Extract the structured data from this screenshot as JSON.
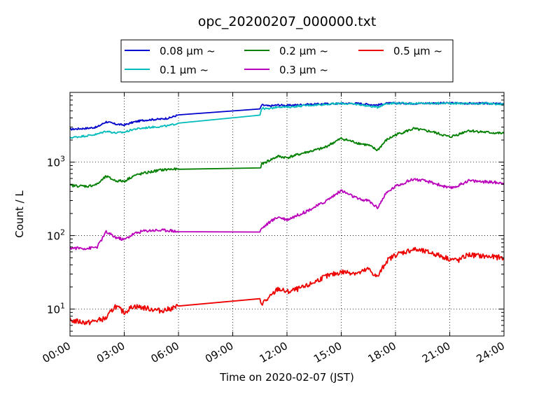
{
  "chart_data": {
    "type": "line",
    "title": "opc_20200207_000000.txt",
    "xlabel": "Time on 2020-02-07 (JST)",
    "ylabel": "Count / L",
    "yscale": "log",
    "grid": true,
    "legend_placement": "top-center",
    "xlim": [
      "00:00",
      "24:00"
    ],
    "ylim": [
      4.3,
      8900
    ],
    "x_ticks": [
      "00:00",
      "03:00",
      "06:00",
      "09:00",
      "12:00",
      "15:00",
      "18:00",
      "21:00",
      "24:00"
    ],
    "y_ticks": [
      {
        "value": 10,
        "base": "10",
        "exp": "1"
      },
      {
        "value": 100,
        "base": "10",
        "exp": "2"
      },
      {
        "value": 1000,
        "base": "10",
        "exp": "3"
      }
    ],
    "x_hours": [
      0,
      1,
      1.5,
      2,
      2.5,
      3,
      3.5,
      4,
      4.5,
      5,
      5.5,
      6,
      10.5,
      10.6,
      11,
      11.5,
      12,
      13,
      14,
      15,
      16,
      16.5,
      17,
      17.5,
      18,
      19,
      20,
      21,
      21.5,
      22,
      23,
      24
    ],
    "series": [
      {
        "name": "0.08 μm ~",
        "color": "#0000cc",
        "noise": 0.025,
        "values": [
          2800,
          2900,
          3000,
          3550,
          3300,
          3200,
          3500,
          3700,
          3800,
          3850,
          4000,
          4400,
          5200,
          6000,
          5800,
          6000,
          5900,
          6100,
          6200,
          6300,
          6300,
          6100,
          6000,
          6300,
          6350,
          6300,
          6350,
          6350,
          6350,
          6300,
          6300,
          6200
        ]
      },
      {
        "name": "0.1 μm ~",
        "color": "#00bbbb",
        "noise": 0.025,
        "values": [
          2150,
          2300,
          2400,
          2650,
          2500,
          2550,
          2800,
          2900,
          3000,
          3050,
          3150,
          3400,
          4400,
          5400,
          5300,
          5700,
          5600,
          5900,
          6100,
          6300,
          6100,
          5800,
          5600,
          6300,
          6350,
          6300,
          6300,
          6350,
          6300,
          6300,
          6300,
          6100
        ]
      },
      {
        "name": "0.2 μm ~",
        "color": "#007f00",
        "noise": 0.035,
        "values": [
          480,
          470,
          500,
          640,
          560,
          550,
          650,
          700,
          740,
          780,
          800,
          800,
          810,
          940,
          1050,
          1200,
          1150,
          1350,
          1550,
          2100,
          1800,
          1700,
          1450,
          2000,
          2350,
          2850,
          2600,
          2200,
          2400,
          2700,
          2550,
          2450
        ]
      },
      {
        "name": "0.3 μm ~",
        "color": "#bb00bb",
        "noise": 0.04,
        "values": [
          68,
          67,
          70,
          112,
          95,
          88,
          105,
          115,
          118,
          118,
          118,
          113,
          113,
          125,
          150,
          180,
          165,
          210,
          280,
          410,
          310,
          300,
          240,
          380,
          470,
          590,
          530,
          440,
          480,
          560,
          540,
          520
        ]
      },
      {
        "name": "0.5 μm ~",
        "color": "#ee0000",
        "noise": 0.07,
        "values": [
          7,
          6.5,
          7,
          7.5,
          11,
          9,
          11,
          10.5,
          10,
          9.5,
          10,
          11,
          13,
          12,
          14,
          19,
          17,
          20,
          27,
          32,
          31,
          35,
          27,
          45,
          55,
          65,
          58,
          48,
          46,
          55,
          52,
          50
        ]
      }
    ]
  }
}
